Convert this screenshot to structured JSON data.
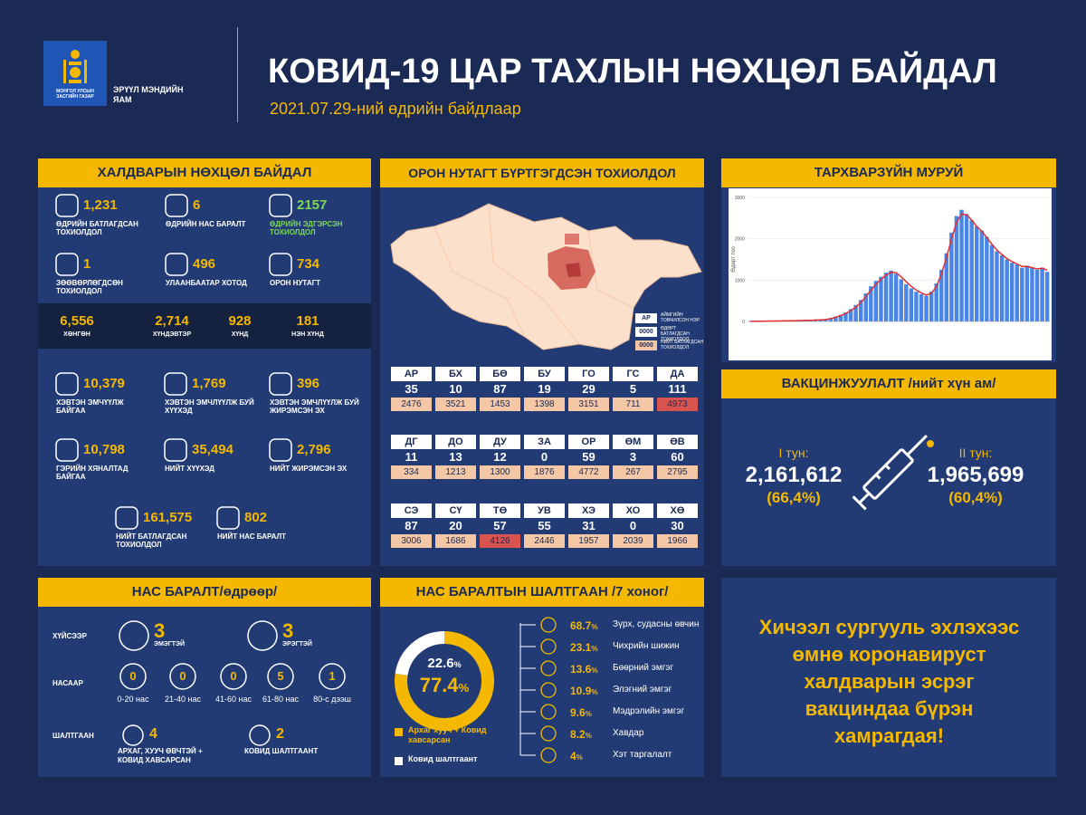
{
  "header": {
    "logo_text": "МОНГОЛ УЛСЫН ЗАСГИЙН ГАЗАР",
    "ministry": "ЭРҮҮЛ МЭНДИЙН ЯАМ",
    "title": "КОВИД-19 ЦАР ТАХЛЫН НӨХЦӨЛ БАЙДАЛ",
    "subtitle": "2021.07.29-ний өдрийн байдлаар"
  },
  "infection": {
    "title": "ХАЛДВАРЫН НӨХЦӨЛ БАЙДАЛ",
    "daily": [
      {
        "value": "1,231",
        "label": "ӨДРИЙН БАТЛАГДСАН ТОХИОЛДОЛ"
      },
      {
        "value": "6",
        "label": "ӨДРИЙН НАС БАРАЛТ"
      },
      {
        "value": "2157",
        "label": "ӨДРИЙН ЭДГЭРСЭН ТОХИОЛДОЛ",
        "color": "#7ed957"
      },
      {
        "value": "1",
        "label": "ЗӨӨВӨРЛӨГДСӨН ТОХИОЛДОЛ"
      },
      {
        "value": "496",
        "label": "УЛААНБААТАР ХОТОД"
      },
      {
        "value": "734",
        "label": "ОРОН НУТАГТ"
      }
    ],
    "severity": [
      {
        "value": "6,556",
        "label": "ХӨНГӨН"
      },
      {
        "value": "2,714",
        "label": "ХҮНДЭВТЭР"
      },
      {
        "value": "928",
        "label": "ХҮНД"
      },
      {
        "value": "181",
        "label": "НЭН ХҮНД"
      }
    ],
    "totals": [
      {
        "value": "10,379",
        "label": "ХЭВТЭН ЭМЧҮҮЛЖ БАЙГАА"
      },
      {
        "value": "1,769",
        "label": "ХЭВТЭН ЭМЧЛҮҮЛЖ БУЙ ХҮҮХЭД"
      },
      {
        "value": "396",
        "label": "ХЭВТЭН ЭМЧЛҮҮЛЖ БУЙ ЖИРЭМСЭН ЭХ"
      },
      {
        "value": "10,798",
        "label": "ГЭРИЙН ХЯНАЛТАД БАЙГАА"
      },
      {
        "value": "35,494",
        "label": "НИЙТ ХҮҮХЭД"
      },
      {
        "value": "2,796",
        "label": "НИЙТ ЖИРЭМСЭН ЭХ"
      },
      {
        "value": "161,575",
        "label": "НИЙТ БАТЛАГДСАН ТОХИОЛДОЛ"
      },
      {
        "value": "802",
        "label": "НИЙТ НАС БАРАЛТ"
      }
    ]
  },
  "regions": {
    "title": "ОРОН НУТАГТ БҮРТГЭГДСЭН ТОХИОЛДОЛ",
    "legend": [
      {
        "key": "АР",
        "label": "АЙМГИЙН ТОВЧИЛСОН НЭР"
      },
      {
        "key": "0000",
        "label": "ӨДӨРТ БАТЛАГДСАН ТОХИОЛДОЛ"
      },
      {
        "key": "0000",
        "label": "НИЙТ БАТЛАГДСАН ТОХИОЛДОЛ"
      }
    ],
    "provinces": [
      {
        "code": "АР",
        "daily": "35",
        "total": "2476",
        "total_color": "#f4c7a6"
      },
      {
        "code": "БХ",
        "daily": "10",
        "total": "3521",
        "total_color": "#f4c7a6"
      },
      {
        "code": "БӨ",
        "daily": "87",
        "total": "1453",
        "total_color": "#f4c7a6"
      },
      {
        "code": "БУ",
        "daily": "19",
        "total": "1398",
        "total_color": "#f4c7a6"
      },
      {
        "code": "ГО",
        "daily": "29",
        "total": "3151",
        "total_color": "#f4c7a6"
      },
      {
        "code": "ГС",
        "daily": "5",
        "total": "711",
        "total_color": "#f4c7a6"
      },
      {
        "code": "ДА",
        "daily": "111",
        "total": "4973",
        "total_color": "#d9534f"
      },
      {
        "code": "ДГ",
        "daily": "11",
        "total": "334",
        "total_color": "#f4c7a6"
      },
      {
        "code": "ДО",
        "daily": "13",
        "total": "1213",
        "total_color": "#f4c7a6"
      },
      {
        "code": "ДУ",
        "daily": "12",
        "total": "1300",
        "total_color": "#f4c7a6"
      },
      {
        "code": "ЗА",
        "daily": "0",
        "total": "1876",
        "total_color": "#f4c7a6"
      },
      {
        "code": "ОР",
        "daily": "59",
        "total": "4772",
        "total_color": "#f4c7a6"
      },
      {
        "code": "ӨМ",
        "daily": "3",
        "total": "267",
        "total_color": "#f4c7a6"
      },
      {
        "code": "ӨВ",
        "daily": "60",
        "total": "2795",
        "total_color": "#f4c7a6"
      },
      {
        "code": "СЭ",
        "daily": "87",
        "total": "3006",
        "total_color": "#f4c7a6"
      },
      {
        "code": "СҮ",
        "daily": "20",
        "total": "1686",
        "total_color": "#f4c7a6"
      },
      {
        "code": "ТӨ",
        "daily": "57",
        "total": "4126",
        "total_color": "#d9534f"
      },
      {
        "code": "УВ",
        "daily": "55",
        "total": "2446",
        "total_color": "#f4c7a6"
      },
      {
        "code": "ХЭ",
        "daily": "31",
        "total": "1957",
        "total_color": "#f4c7a6"
      },
      {
        "code": "ХО",
        "daily": "0",
        "total": "2039",
        "total_color": "#f4c7a6"
      },
      {
        "code": "ХӨ",
        "daily": "30",
        "total": "1966",
        "total_color": "#f4c7a6"
      }
    ]
  },
  "epi_curve": {
    "title": "ТАРХВАРЗҮЙН МУРУЙ",
    "y_label": "Өдөрт тоо",
    "ylim": [
      0,
      3000
    ],
    "yticks": [
      0,
      1000,
      2000,
      3000
    ],
    "bar_color": "#4a86e8",
    "line_color": "#e03030",
    "values": [
      5,
      5,
      8,
      10,
      10,
      12,
      15,
      15,
      20,
      20,
      25,
      30,
      30,
      40,
      45,
      50,
      80,
      120,
      160,
      220,
      300,
      400,
      520,
      680,
      850,
      980,
      1080,
      1180,
      1230,
      1150,
      1020,
      900,
      800,
      720,
      660,
      620,
      720,
      920,
      1250,
      1650,
      2150,
      2550,
      2700,
      2600,
      2450,
      2300,
      2200,
      2050,
      1850,
      1700,
      1600,
      1500,
      1420,
      1380,
      1300,
      1350,
      1300,
      1250,
      1300,
      1200
    ],
    "average": [
      3,
      5,
      6,
      8,
      10,
      11,
      13,
      15,
      17,
      19,
      22,
      26,
      29,
      35,
      40,
      46,
      70,
      100,
      140,
      190,
      260,
      350,
      460,
      600,
      760,
      900,
      1020,
      1120,
      1190,
      1180,
      1080,
      960,
      850,
      760,
      690,
      640,
      680,
      850,
      1150,
      1550,
      2000,
      2400,
      2600,
      2580,
      2450,
      2300,
      2180,
      2030,
      1870,
      1730,
      1620,
      1520,
      1450,
      1390,
      1330,
      1330,
      1300,
      1270,
      1290,
      1240
    ]
  },
  "vaccination": {
    "title": "ВАКЦИНЖУУЛАЛТ /нийт хүн ам/",
    "doses": [
      {
        "label": "I тун:",
        "count": "2,161,612",
        "percent": "(66,4%)"
      },
      {
        "label": "II тун:",
        "count": "1,965,699",
        "percent": "(60,4%)"
      }
    ]
  },
  "deaths": {
    "title": "НАС БАРАЛТ/өдрөөр/",
    "by_sex": {
      "label": "ХҮЙСЭЭР",
      "items": [
        {
          "value": "3",
          "label": "ЭМЭГТЭЙ"
        },
        {
          "value": "3",
          "label": "ЭРЭГТЭЙ"
        }
      ]
    },
    "by_age": {
      "label": "НАСААР",
      "items": [
        {
          "value": "0",
          "label": "0-20 нас"
        },
        {
          "value": "0",
          "label": "21-40 нас"
        },
        {
          "value": "0",
          "label": "41-60 нас"
        },
        {
          "value": "5",
          "label": "61-80 нас"
        },
        {
          "value": "1",
          "label": "80-с дээш"
        }
      ]
    },
    "by_cause": {
      "label": "ШАЛТГААН",
      "items": [
        {
          "value": "4",
          "label": "АРХАГ, ХУУЧ ӨВЧТЭЙ + КОВИД ХАВСАРСАН"
        },
        {
          "value": "2",
          "label": "КОВИД ШАЛТГААНТ"
        }
      ]
    }
  },
  "death_causes": {
    "title": "НАС БАРАЛТЫН ШАЛТГААН /7 хоног/",
    "unit": "%",
    "segments": [
      {
        "name": "Архаг хууч + Ковид хавсарсан",
        "value": 77.4,
        "color": "#f5b800"
      },
      {
        "name": "Ковид шалтгаант",
        "value": 22.6,
        "color": "#ffffff"
      }
    ],
    "conditions": [
      {
        "value": "68.7",
        "label": "Зүрх, судасны өвчин"
      },
      {
        "value": "23.1",
        "label": "Чихрийн шижин"
      },
      {
        "value": "13.6",
        "label": "Бөөрний эмгэг"
      },
      {
        "value": "10.9",
        "label": "Элэгний эмгэг"
      },
      {
        "value": "9.6",
        "label": "Мэдрэлийн эмгэг"
      },
      {
        "value": "8.2",
        "label": "Хавдар"
      },
      {
        "value": "4",
        "label": "Хэт таргалалт"
      }
    ]
  },
  "slogan": [
    "Хичээл сургууль эхлэхээс",
    "өмнө коронавируст",
    "халдварын эсрэг",
    "вакциндаа бүрэн",
    "хамрагдая!"
  ]
}
